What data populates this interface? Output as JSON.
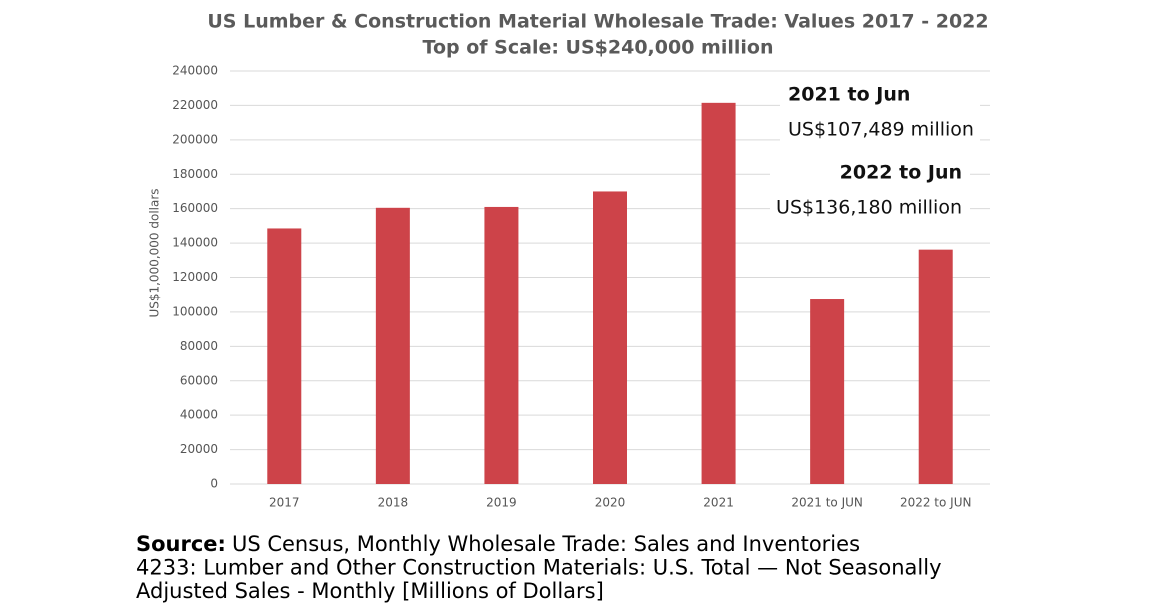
{
  "chart_data": {
    "type": "bar",
    "title": "US Lumber & Construction Material Wholesale Trade: Values 2017 - 2022",
    "subtitle": "Top of Scale: US$240,000 million",
    "y_label": "US$1,000,000 dollars",
    "categories": [
      "2017",
      "2018",
      "2019",
      "2020",
      "2021",
      "2021 to JUN",
      "2022 to JUN"
    ],
    "values": [
      148500,
      160500,
      161000,
      170000,
      221500,
      107489,
      136180
    ],
    "color": "#cd4349",
    "ylim": [
      0,
      240000
    ],
    "yticks": [
      0,
      20000,
      40000,
      60000,
      80000,
      100000,
      120000,
      140000,
      160000,
      180000,
      200000,
      220000,
      240000
    ],
    "grid": true,
    "annotations": [
      "2021 to Jun",
      "US$107,489 million",
      "2022 to Jun",
      "US$136,180 million"
    ],
    "source": {
      "label": "Source:",
      "lines": [
        "US Census, Monthly Wholesale Trade: Sales and Inventories",
        "4233: Lumber and Other Construction Materials: U.S. Total — Not Seasonally",
        "Adjusted Sales - Monthly [Millions of Dollars]"
      ]
    }
  }
}
